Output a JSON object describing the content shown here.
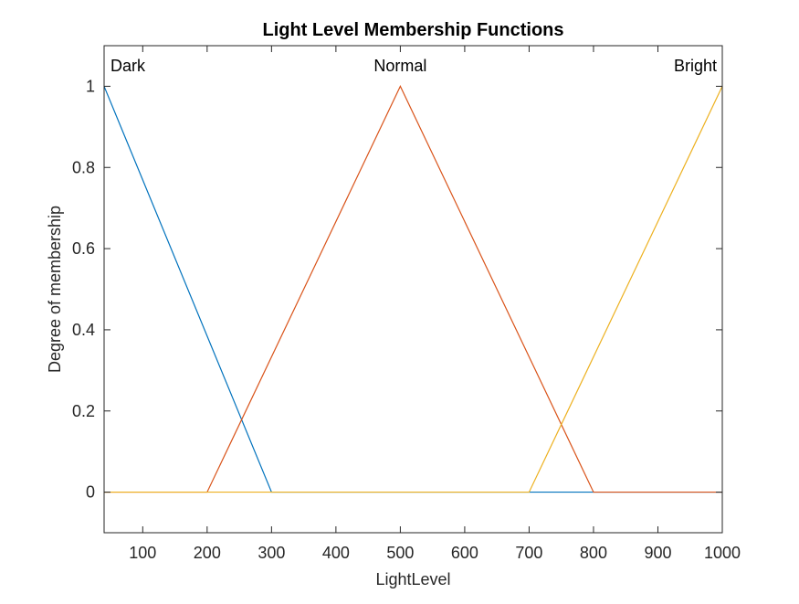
{
  "chart_data": {
    "type": "line",
    "title": "Light Level Membership Functions",
    "xlabel": "LightLevel",
    "ylabel": "Degree of membership",
    "xlim": [
      40,
      1000
    ],
    "ylim": [
      -0.1,
      1.1
    ],
    "xticks": [
      100,
      200,
      300,
      400,
      500,
      600,
      700,
      800,
      900,
      1000
    ],
    "yticks": [
      0,
      0.2,
      0.4,
      0.6,
      0.8,
      1
    ],
    "grid": false,
    "series": [
      {
        "name": "Dark",
        "color": "#0072BD",
        "x": [
          40,
          300,
          1000
        ],
        "y": [
          1,
          0,
          0
        ]
      },
      {
        "name": "Normal",
        "color": "#D95319",
        "x": [
          40,
          200,
          500,
          800,
          1000
        ],
        "y": [
          0,
          0,
          1,
          0,
          0
        ]
      },
      {
        "name": "Bright",
        "color": "#EDB120",
        "x": [
          40,
          700,
          1000
        ],
        "y": [
          0,
          0,
          1
        ]
      }
    ],
    "annotations": [
      {
        "text": "Dark",
        "x": 40,
        "y": 1.05,
        "align": "start"
      },
      {
        "text": "Normal",
        "x": 500,
        "y": 1.05,
        "align": "middle"
      },
      {
        "text": "Bright",
        "x": 1000,
        "y": 1.05,
        "align": "end"
      }
    ]
  }
}
